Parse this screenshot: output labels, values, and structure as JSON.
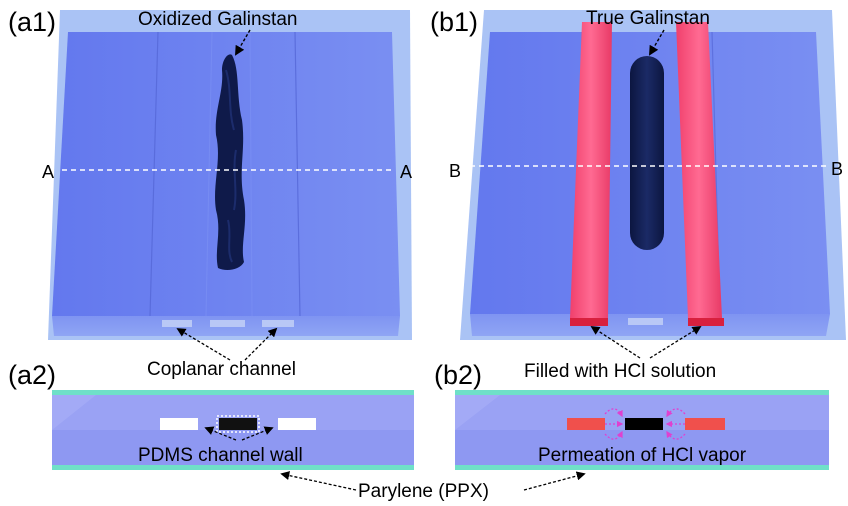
{
  "panels": {
    "a1": {
      "tag": "(a1)",
      "callout": "Oxidized Galinstan",
      "section_left": "A",
      "section_right": "A"
    },
    "b1": {
      "tag": "(b1)",
      "callout": "True Galinstan",
      "section_left": "B",
      "section_right": "B"
    },
    "a2": {
      "tag": "(a2)",
      "callout": "PDMS channel wall"
    },
    "b2": {
      "tag": "(b2)",
      "callout": "Permeation of HCl vapor"
    }
  },
  "shared_labels": {
    "coplanar": "Coplanar channel",
    "hcl_fill": "Filled with HCl solution",
    "parylene": "Parylene (PPX)"
  },
  "colors": {
    "pdms_top": "#6f86f0",
    "pdms_frame": "#a9c2f4",
    "galinstan": "#0f1a4a",
    "hcl_channel": "#f0507c",
    "parylene": "#6fe0c8",
    "vapor_arrows": "#e040d0"
  }
}
